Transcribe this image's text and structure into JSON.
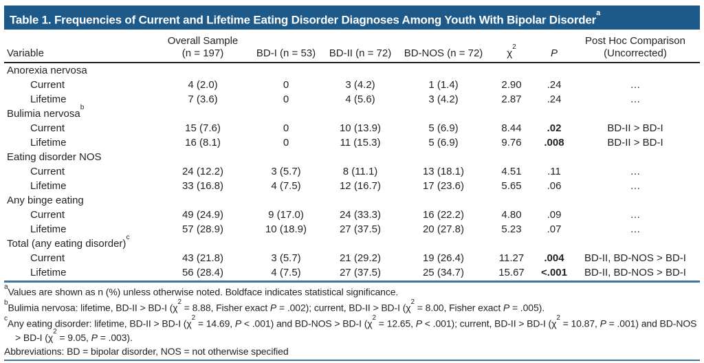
{
  "title": {
    "text": "Table 1. Frequencies of Current and Lifetime Eating Disorder Diagnoses Among Youth With Bipolar Disorder",
    "sup": "a"
  },
  "colors": {
    "title_bar_bg": "#1d5a8a",
    "title_text": "#ffffff",
    "rule_blue": "#3f739c",
    "rule_black": "#231f20",
    "body_text": "#231f20"
  },
  "header": {
    "variable": "Variable",
    "overall_line1": "Overall Sample",
    "overall_line2": "(n = 197)",
    "bdi": "BD-I (n = 53)",
    "bdii": "BD-II (n = 72)",
    "bdnos": "BD-NOS (n = 72)",
    "chi_base": "χ",
    "chi_sup": "2",
    "p": "P",
    "posthoc_line1": "Post Hoc Comparison",
    "posthoc_line2": "(Uncorrected)"
  },
  "rows": [
    {
      "type": "group",
      "label": "Anorexia nervosa",
      "sup": ""
    },
    {
      "type": "data",
      "label": "Current",
      "p_bold": false,
      "cells": [
        "4 (2.0)",
        "0",
        "3 (4.2)",
        "1 (1.4)",
        "2.90",
        ".24",
        "…"
      ]
    },
    {
      "type": "data",
      "label": "Lifetime",
      "p_bold": false,
      "cells": [
        "7 (3.6)",
        "0",
        "4 (5.6)",
        "3 (4.2)",
        "2.87",
        ".24",
        "…"
      ]
    },
    {
      "type": "group",
      "label": "Bulimia nervosa",
      "sup": "b"
    },
    {
      "type": "data",
      "label": "Current",
      "p_bold": true,
      "cells": [
        "15 (7.6)",
        "0",
        "10 (13.9)",
        "5 (6.9)",
        "8.44",
        ".02",
        "BD-II > BD-I"
      ]
    },
    {
      "type": "data",
      "label": "Lifetime",
      "p_bold": true,
      "cells": [
        "16 (8.1)",
        "0",
        "11 (15.3)",
        "5 (6.9)",
        "9.76",
        ".008",
        "BD-II > BD-I"
      ]
    },
    {
      "type": "group",
      "label": "Eating disorder NOS",
      "sup": ""
    },
    {
      "type": "data",
      "label": "Current",
      "p_bold": false,
      "cells": [
        "24 (12.2)",
        "3 (5.7)",
        "8 (11.1)",
        "13 (18.1)",
        "4.51",
        ".11",
        "…"
      ]
    },
    {
      "type": "data",
      "label": "Lifetime",
      "p_bold": false,
      "cells": [
        "33 (16.8)",
        "4 (7.5)",
        "12 (16.7)",
        "17 (23.6)",
        "5.65",
        ".06",
        "…"
      ]
    },
    {
      "type": "group",
      "label": "Any binge eating",
      "sup": ""
    },
    {
      "type": "data",
      "label": "Current",
      "p_bold": false,
      "cells": [
        "49 (24.9)",
        "9 (17.0)",
        "24 (33.3)",
        "16 (22.2)",
        "4.80",
        ".09",
        "…"
      ]
    },
    {
      "type": "data",
      "label": "Lifetime",
      "p_bold": false,
      "cells": [
        "57 (28.9)",
        "10 (18.9)",
        "27 (37.5)",
        "20 (27.8)",
        "5.23",
        ".07",
        "…"
      ]
    },
    {
      "type": "group",
      "label": "Total (any eating disorder)",
      "sup": "c"
    },
    {
      "type": "data",
      "label": "Current",
      "p_bold": true,
      "cells": [
        "43 (21.8)",
        "3 (5.7)",
        "21 (29.2)",
        "19 (26.4)",
        "11.27",
        ".004",
        "BD-II, BD-NOS > BD-I"
      ]
    },
    {
      "type": "data",
      "label": "Lifetime",
      "p_bold": true,
      "cells": [
        "56 (28.4)",
        "4 (7.5)",
        "27 (37.5)",
        "25 (34.7)",
        "15.67",
        "<.001",
        "BD-II, BD-NOS > BD-I"
      ]
    }
  ],
  "footnotes": [
    {
      "marker": "a",
      "segments": [
        {
          "t": "Values are shown as n (%) unless otherwise noted. Boldface indicates statistical significance."
        }
      ]
    },
    {
      "marker": "b",
      "segments": [
        {
          "t": "Bulimia nervosa: lifetime, BD-II > BD-I (χ"
        },
        {
          "t": "2",
          "sup": true
        },
        {
          "t": " = 8.88, Fisher exact "
        },
        {
          "t": "P",
          "i": true
        },
        {
          "t": " = .002); current, BD-II > BD-I (χ"
        },
        {
          "t": "2",
          "sup": true
        },
        {
          "t": " = 8.00, Fisher exact "
        },
        {
          "t": "P",
          "i": true
        },
        {
          "t": " = .005)."
        }
      ]
    },
    {
      "marker": "c",
      "segments": [
        {
          "t": "Any eating disorder: lifetime, BD-II > BD-I (χ"
        },
        {
          "t": "2",
          "sup": true
        },
        {
          "t": " = 14.69, "
        },
        {
          "t": "P",
          "i": true
        },
        {
          "t": " < .001) and BD-NOS > BD-I (χ"
        },
        {
          "t": "2",
          "sup": true
        },
        {
          "t": " = 12.65, "
        },
        {
          "t": "P",
          "i": true
        },
        {
          "t": " < .001); current, BD-II > BD-I (χ"
        },
        {
          "t": "2",
          "sup": true
        },
        {
          "t": " = 10.87, "
        },
        {
          "t": "P",
          "i": true
        },
        {
          "t": " = .001) and BD-NOS > BD-I (χ"
        },
        {
          "t": "2",
          "sup": true
        },
        {
          "t": " = 9.05, "
        },
        {
          "t": "P",
          "i": true
        },
        {
          "t": " = .003)."
        }
      ]
    },
    {
      "marker": "",
      "segments": [
        {
          "t": "Abbreviations: BD = bipolar disorder, NOS = not otherwise specified"
        }
      ]
    }
  ]
}
